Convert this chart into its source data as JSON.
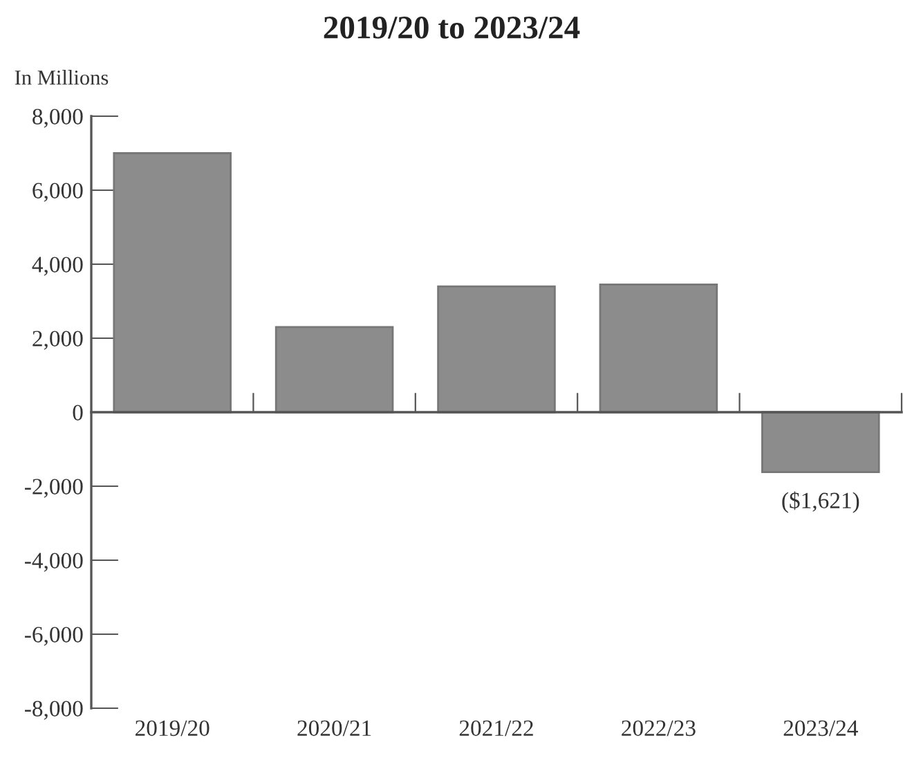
{
  "chart_data": {
    "type": "bar",
    "title": "2019/20 to 2023/24",
    "ylabel": "In Millions",
    "categories": [
      "2019/20",
      "2020/21",
      "2021/22",
      "2022/23",
      "2023/24"
    ],
    "values": [
      7000,
      2300,
      3400,
      3450,
      -1621
    ],
    "color": "#8c8c8c",
    "value_labels": [
      null,
      null,
      null,
      null,
      "($1,621)"
    ],
    "ylim": [
      -8000,
      8000
    ],
    "yticks": [
      {
        "value": -8000,
        "label": "-8,000"
      },
      {
        "value": -6000,
        "label": "-6,000"
      },
      {
        "value": -4000,
        "label": "-4,000"
      },
      {
        "value": -2000,
        "label": "-2,000"
      },
      0,
      {
        "value": 2000,
        "label": "2,000"
      },
      {
        "value": 4000,
        "label": "4,000"
      },
      {
        "value": 6000,
        "label": "6,000"
      },
      {
        "value": 8000,
        "label": "8,000"
      }
    ]
  }
}
